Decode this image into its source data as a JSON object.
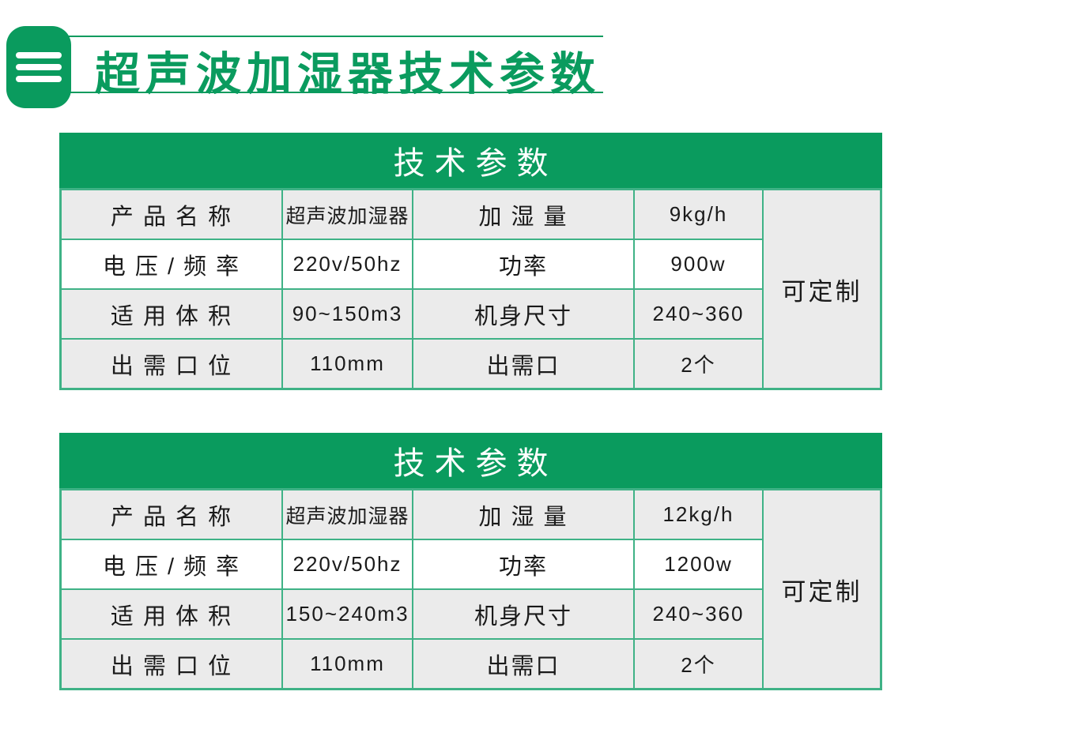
{
  "page": {
    "title": "超声波加湿器技术参数"
  },
  "colors": {
    "brand_green": "#0a9b5e",
    "table_border_green": "#3fb286",
    "cell_gray": "#ebebeb",
    "header_text": "#ffffff"
  },
  "icons": {
    "menu": "hamburger-icon"
  },
  "tables": [
    {
      "header": "技术参数",
      "note": "可定制",
      "rows": [
        {
          "c0": "产 品 名 称",
          "c1": "超声波加湿器",
          "c2": "加 湿 量",
          "c3": "9kg/h"
        },
        {
          "c0": "电 压 / 频 率",
          "c1": "220v/50hz",
          "c2": "功率",
          "c3": "900w"
        },
        {
          "c0": "适 用 体 积",
          "c1": "90~150m3",
          "c2": "机身尺寸",
          "c3": "240~360"
        },
        {
          "c0": "出 需 口 位",
          "c1": "110mm",
          "c2": "出需口",
          "c3": "2个"
        }
      ]
    },
    {
      "header": "技术参数",
      "note": "可定制",
      "rows": [
        {
          "c0": "产 品 名 称",
          "c1": "超声波加湿器",
          "c2": "加 湿 量",
          "c3": "12kg/h"
        },
        {
          "c0": "电 压 / 频 率",
          "c1": "220v/50hz",
          "c2": "功率",
          "c3": "1200w"
        },
        {
          "c0": "适 用 体 积",
          "c1": "150~240m3",
          "c2": "机身尺寸",
          "c3": "240~360"
        },
        {
          "c0": "出 需 口 位",
          "c1": "110mm",
          "c2": "出需口",
          "c3": "2个"
        }
      ]
    }
  ]
}
